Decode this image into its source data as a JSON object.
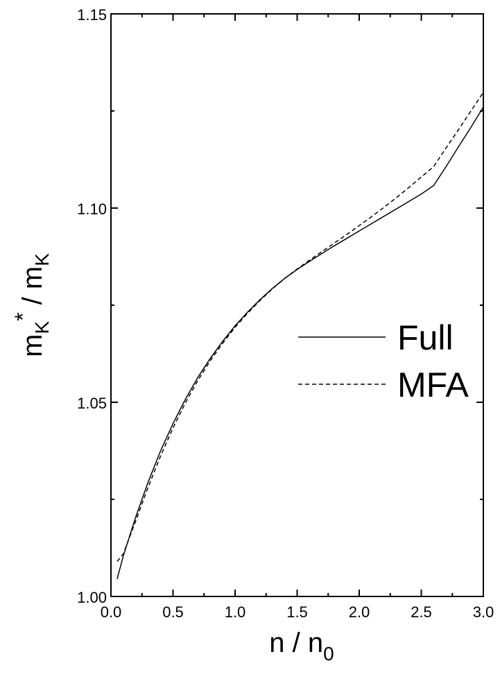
{
  "chart_data": {
    "type": "line",
    "xlim": [
      0.0,
      3.0
    ],
    "ylim": [
      1.0,
      1.15
    ],
    "x_ticks": [
      "0.0",
      "0.5",
      "1.0",
      "1.5",
      "2.0",
      "2.5",
      "3.0"
    ],
    "y_ticks": [
      "1.00",
      "1.05",
      "1.10",
      "1.15"
    ],
    "x_tick_values": [
      0.0,
      0.5,
      1.0,
      1.5,
      2.0,
      2.5,
      3.0
    ],
    "y_tick_values": [
      1.0,
      1.05,
      1.1,
      1.15
    ],
    "xlabel": {
      "main": "n / n",
      "sub": "0"
    },
    "ylabel": {
      "main": "m",
      "sub1": "K",
      "sup": "*",
      "mid": " / m",
      "sub2": "K"
    },
    "legend_position": "center-right",
    "grid": false,
    "series": [
      {
        "name": "Full",
        "style": "solid",
        "color": "#000000",
        "x": [
          0.05,
          0.1,
          0.2,
          0.3,
          0.4,
          0.5,
          0.6,
          0.7,
          0.8,
          0.9,
          1.0,
          1.1,
          1.2,
          1.3,
          1.4,
          1.5,
          1.6,
          1.7,
          1.8,
          1.9,
          2.0,
          2.1,
          2.2,
          2.3,
          2.4,
          2.5,
          2.6,
          2.7,
          2.8,
          2.9,
          3.0
        ],
        "y": [
          1.0045,
          1.0105,
          1.0205,
          1.0295,
          1.0375,
          1.0445,
          1.0508,
          1.0564,
          1.0613,
          1.0657,
          1.0697,
          1.0732,
          1.0764,
          1.0793,
          1.0819,
          1.0842,
          1.0863,
          1.0883,
          1.0903,
          1.0922,
          1.0941,
          1.096,
          1.0979,
          1.0998,
          1.1017,
          1.1036,
          1.1058,
          1.1107,
          1.1158,
          1.1208,
          1.126
        ]
      },
      {
        "name": "MFA",
        "style": "dashed",
        "color": "#000000",
        "x": [
          0.05,
          0.1,
          0.2,
          0.3,
          0.4,
          0.5,
          0.6,
          0.7,
          0.8,
          0.9,
          1.0,
          1.1,
          1.2,
          1.3,
          1.4,
          1.5,
          1.6,
          1.7,
          1.8,
          1.9,
          2.0,
          2.1,
          2.2,
          2.3,
          2.4,
          2.5,
          2.6,
          2.7,
          2.8,
          2.9,
          3.0
        ],
        "y": [
          1.009,
          1.011,
          1.0195,
          1.0282,
          1.0362,
          1.0434,
          1.0499,
          1.0556,
          1.0607,
          1.0652,
          1.0693,
          1.0729,
          1.0762,
          1.0792,
          1.0819,
          1.0843,
          1.0866,
          1.0888,
          1.091,
          1.0932,
          1.0955,
          1.0978,
          1.1002,
          1.1027,
          1.1053,
          1.108,
          1.1107,
          1.1155,
          1.1202,
          1.125,
          1.1298
        ]
      }
    ]
  }
}
